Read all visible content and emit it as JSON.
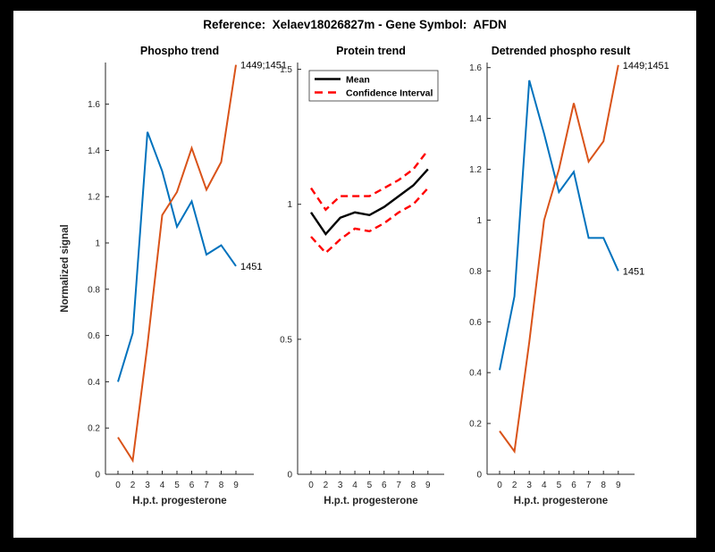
{
  "title": "Reference:  Xelaev18026827m - Gene Symbol:  AFDN",
  "colors": {
    "figure_background": "#FFFFFF",
    "window_background": "#000000",
    "blue": "#0072BD",
    "orange": "#D95319",
    "red": "#FF0000",
    "black": "#000000",
    "axis": "#262626"
  },
  "chart_data": [
    {
      "type": "line",
      "title": "Phospho trend",
      "xlabel": "H.p.t. progesterone",
      "ylabel": "Normalized signal",
      "x_ticklabels": [
        "0",
        "2",
        "3",
        "4",
        "5",
        "6",
        "7",
        "8",
        "9"
      ],
      "y_ticklabels": [
        "0",
        "0.2",
        "0.4",
        "0.6",
        "0.8",
        "1",
        "1.2",
        "1.4",
        "1.6"
      ],
      "yticks": [
        0,
        0.2,
        0.4,
        0.6,
        0.8,
        1,
        1.2,
        1.4,
        1.6
      ],
      "ylim": [
        0,
        1.78
      ],
      "grid": false,
      "legend_position": "none",
      "series": [
        {
          "name": "1451",
          "color": "#0072BD",
          "style": "solid",
          "width": 2,
          "values": [
            0.4,
            0.61,
            1.48,
            1.31,
            1.07,
            1.18,
            0.95,
            0.99,
            0.9
          ]
        },
        {
          "name": "1449;1451",
          "color": "#D95319",
          "style": "solid",
          "width": 2,
          "values": [
            0.16,
            0.06,
            0.56,
            1.12,
            1.22,
            1.41,
            1.23,
            1.35,
            1.77
          ]
        }
      ],
      "annotations": [
        {
          "text": "1449;1451",
          "xi": 8,
          "y": 1.77
        },
        {
          "text": "1451",
          "xi": 8,
          "y": 0.9
        }
      ]
    },
    {
      "type": "line",
      "title": "Protein trend",
      "xlabel": "H.p.t. progesterone",
      "ylabel": "",
      "x_ticklabels": [
        "0",
        "2",
        "3",
        "4",
        "5",
        "6",
        "7",
        "8",
        "9"
      ],
      "y_ticklabels": [
        "0",
        "0.5",
        "1",
        "1.5"
      ],
      "yticks": [
        0,
        0.5,
        1,
        1.5
      ],
      "ylim": [
        0,
        1.525
      ],
      "grid": false,
      "legend_position": "top-left-inside",
      "series": [
        {
          "name": "Mean",
          "color": "#000000",
          "style": "solid",
          "width": 2.4,
          "values": [
            0.97,
            0.89,
            0.95,
            0.97,
            0.96,
            0.99,
            1.03,
            1.07,
            1.13
          ]
        },
        {
          "name": "Confidence Interval upper",
          "color": "#FF0000",
          "style": "dashed",
          "width": 2.4,
          "values": [
            1.06,
            0.98,
            1.03,
            1.03,
            1.03,
            1.06,
            1.09,
            1.13,
            1.2
          ]
        },
        {
          "name": "Confidence Interval lower",
          "color": "#FF0000",
          "style": "dashed",
          "width": 2.4,
          "values": [
            0.88,
            0.82,
            0.87,
            0.91,
            0.9,
            0.93,
            0.97,
            1.0,
            1.06
          ]
        }
      ],
      "legend": [
        {
          "label": "Mean",
          "color": "#000000",
          "style": "solid"
        },
        {
          "label": "Confidence Interval",
          "color": "#FF0000",
          "style": "dashed"
        }
      ],
      "annotations": []
    },
    {
      "type": "line",
      "title": "Detrended phospho result",
      "xlabel": "H.p.t. progesterone",
      "ylabel": "",
      "x_ticklabels": [
        "0",
        "2",
        "3",
        "4",
        "5",
        "6",
        "7",
        "8",
        "9"
      ],
      "y_ticklabels": [
        "0",
        "0.2",
        "0.4",
        "0.6",
        "0.8",
        "1",
        "1.2",
        "1.4",
        "1.6"
      ],
      "yticks": [
        0,
        0.2,
        0.4,
        0.6,
        0.8,
        1,
        1.2,
        1.4,
        1.6
      ],
      "ylim": [
        0,
        1.62
      ],
      "grid": false,
      "legend_position": "none",
      "series": [
        {
          "name": "1451",
          "color": "#0072BD",
          "style": "solid",
          "width": 2,
          "values": [
            0.41,
            0.7,
            1.55,
            1.34,
            1.11,
            1.19,
            0.93,
            0.93,
            0.8
          ]
        },
        {
          "name": "1449;1451",
          "color": "#D95319",
          "style": "solid",
          "width": 2,
          "values": [
            0.17,
            0.09,
            0.52,
            1.0,
            1.2,
            1.46,
            1.23,
            1.31,
            1.61
          ]
        }
      ],
      "annotations": [
        {
          "text": "1449;1451",
          "xi": 8,
          "y": 1.61
        },
        {
          "text": "1451",
          "xi": 8,
          "y": 0.8
        }
      ]
    }
  ]
}
